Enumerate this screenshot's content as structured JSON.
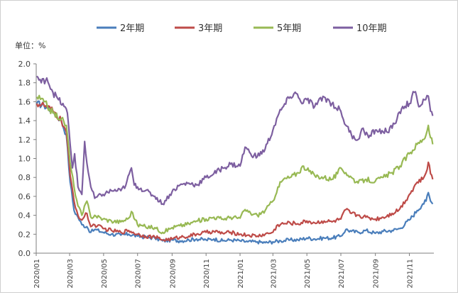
{
  "chart_data": {
    "type": "line",
    "title": "",
    "ylabel": "单位：%",
    "xlabel": "",
    "ylim": [
      0,
      2.0
    ],
    "yticks": [
      "0.0",
      "0.2",
      "0.4",
      "0.6",
      "0.8",
      "1.0",
      "1.2",
      "1.4",
      "1.6",
      "1.8",
      "2.0"
    ],
    "x_ticks": [
      "2020/01",
      "2020/03",
      "2020/05",
      "2020/07",
      "2020/09",
      "2020/11",
      "2021/01",
      "2021/03",
      "2021/05",
      "2021/07",
      "2021/09",
      "2021/11"
    ],
    "x_range": [
      "2020-01-01",
      "2021-12-15"
    ],
    "grid": false,
    "legend_position": "top",
    "series": [
      {
        "name": "2年期",
        "color": "#4a7ebb",
        "points": [
          [
            "2020-01-02",
            1.58
          ],
          [
            "2020-01-15",
            1.56
          ],
          [
            "2020-01-31",
            1.5
          ],
          [
            "2020-02-15",
            1.4
          ],
          [
            "2020-02-24",
            1.25
          ],
          [
            "2020-03-02",
            0.75
          ],
          [
            "2020-03-09",
            0.45
          ],
          [
            "2020-03-16",
            0.38
          ],
          [
            "2020-03-23",
            0.3
          ],
          [
            "2020-04-01",
            0.28
          ],
          [
            "2020-04-08",
            0.22
          ],
          [
            "2020-04-15",
            0.25
          ],
          [
            "2020-04-30",
            0.22
          ],
          [
            "2020-05-15",
            0.2
          ],
          [
            "2020-06-01",
            0.19
          ],
          [
            "2020-06-15",
            0.2
          ],
          [
            "2020-07-01",
            0.18
          ],
          [
            "2020-07-15",
            0.17
          ],
          [
            "2020-08-01",
            0.16
          ],
          [
            "2020-08-15",
            0.13
          ],
          [
            "2020-09-01",
            0.14
          ],
          [
            "2020-09-15",
            0.13
          ],
          [
            "2020-10-01",
            0.14
          ],
          [
            "2020-10-15",
            0.15
          ],
          [
            "2020-11-01",
            0.14
          ],
          [
            "2020-11-15",
            0.15
          ],
          [
            "2020-12-01",
            0.13
          ],
          [
            "2020-12-15",
            0.14
          ],
          [
            "2021-01-01",
            0.13
          ],
          [
            "2021-01-15",
            0.12
          ],
          [
            "2021-02-01",
            0.12
          ],
          [
            "2021-02-15",
            0.11
          ],
          [
            "2021-03-01",
            0.12
          ],
          [
            "2021-03-15",
            0.13
          ],
          [
            "2021-04-01",
            0.14
          ],
          [
            "2021-04-15",
            0.14
          ],
          [
            "2021-05-01",
            0.16
          ],
          [
            "2021-05-15",
            0.15
          ],
          [
            "2021-06-01",
            0.16
          ],
          [
            "2021-06-15",
            0.16
          ],
          [
            "2021-07-01",
            0.18
          ],
          [
            "2021-07-10",
            0.25
          ],
          [
            "2021-07-20",
            0.23
          ],
          [
            "2021-08-01",
            0.22
          ],
          [
            "2021-08-15",
            0.24
          ],
          [
            "2021-09-01",
            0.21
          ],
          [
            "2021-09-15",
            0.23
          ],
          [
            "2021-10-01",
            0.24
          ],
          [
            "2021-10-15",
            0.26
          ],
          [
            "2021-11-01",
            0.35
          ],
          [
            "2021-11-15",
            0.45
          ],
          [
            "2021-11-25",
            0.52
          ],
          [
            "2021-12-01",
            0.55
          ],
          [
            "2021-12-05",
            0.64
          ],
          [
            "2021-12-09",
            0.55
          ],
          [
            "2021-12-13",
            0.52
          ]
        ]
      },
      {
        "name": "3年期",
        "color": "#be4b48",
        "points": [
          [
            "2020-01-02",
            1.58
          ],
          [
            "2020-01-15",
            1.56
          ],
          [
            "2020-01-31",
            1.5
          ],
          [
            "2020-02-15",
            1.4
          ],
          [
            "2020-02-24",
            1.28
          ],
          [
            "2020-03-02",
            0.82
          ],
          [
            "2020-03-09",
            0.55
          ],
          [
            "2020-03-16",
            0.4
          ],
          [
            "2020-03-23",
            0.35
          ],
          [
            "2020-04-01",
            0.42
          ],
          [
            "2020-04-08",
            0.28
          ],
          [
            "2020-04-15",
            0.3
          ],
          [
            "2020-04-30",
            0.26
          ],
          [
            "2020-05-15",
            0.24
          ],
          [
            "2020-06-01",
            0.22
          ],
          [
            "2020-06-15",
            0.24
          ],
          [
            "2020-07-01",
            0.2
          ],
          [
            "2020-07-15",
            0.18
          ],
          [
            "2020-08-01",
            0.17
          ],
          [
            "2020-08-15",
            0.14
          ],
          [
            "2020-09-01",
            0.15
          ],
          [
            "2020-09-15",
            0.17
          ],
          [
            "2020-10-01",
            0.18
          ],
          [
            "2020-10-15",
            0.2
          ],
          [
            "2020-11-01",
            0.22
          ],
          [
            "2020-11-15",
            0.23
          ],
          [
            "2020-12-01",
            0.21
          ],
          [
            "2020-12-15",
            0.22
          ],
          [
            "2021-01-01",
            0.2
          ],
          [
            "2021-01-15",
            0.19
          ],
          [
            "2021-02-01",
            0.18
          ],
          [
            "2021-02-15",
            0.2
          ],
          [
            "2021-03-01",
            0.22
          ],
          [
            "2021-03-10",
            0.3
          ],
          [
            "2021-03-20",
            0.31
          ],
          [
            "2021-04-01",
            0.32
          ],
          [
            "2021-04-15",
            0.31
          ],
          [
            "2021-05-01",
            0.34
          ],
          [
            "2021-05-15",
            0.32
          ],
          [
            "2021-06-01",
            0.34
          ],
          [
            "2021-06-15",
            0.33
          ],
          [
            "2021-07-01",
            0.36
          ],
          [
            "2021-07-10",
            0.46
          ],
          [
            "2021-07-20",
            0.42
          ],
          [
            "2021-08-01",
            0.4
          ],
          [
            "2021-08-15",
            0.38
          ],
          [
            "2021-09-01",
            0.36
          ],
          [
            "2021-09-15",
            0.38
          ],
          [
            "2021-10-01",
            0.42
          ],
          [
            "2021-10-15",
            0.47
          ],
          [
            "2021-11-01",
            0.62
          ],
          [
            "2021-11-15",
            0.75
          ],
          [
            "2021-11-25",
            0.78
          ],
          [
            "2021-12-01",
            0.85
          ],
          [
            "2021-12-05",
            0.96
          ],
          [
            "2021-12-09",
            0.84
          ],
          [
            "2021-12-13",
            0.78
          ]
        ]
      },
      {
        "name": "5年期",
        "color": "#98b954",
        "points": [
          [
            "2020-01-02",
            1.65
          ],
          [
            "2020-01-15",
            1.6
          ],
          [
            "2020-01-31",
            1.48
          ],
          [
            "2020-02-15",
            1.42
          ],
          [
            "2020-02-24",
            1.35
          ],
          [
            "2020-03-02",
            0.95
          ],
          [
            "2020-03-09",
            0.7
          ],
          [
            "2020-03-16",
            0.5
          ],
          [
            "2020-03-23",
            0.4
          ],
          [
            "2020-04-01",
            0.55
          ],
          [
            "2020-04-08",
            0.38
          ],
          [
            "2020-04-15",
            0.4
          ],
          [
            "2020-04-30",
            0.36
          ],
          [
            "2020-05-15",
            0.34
          ],
          [
            "2020-06-01",
            0.33
          ],
          [
            "2020-06-15",
            0.37
          ],
          [
            "2020-06-20",
            0.44
          ],
          [
            "2020-07-01",
            0.3
          ],
          [
            "2020-07-15",
            0.28
          ],
          [
            "2020-08-01",
            0.27
          ],
          [
            "2020-08-15",
            0.22
          ],
          [
            "2020-09-01",
            0.27
          ],
          [
            "2020-09-15",
            0.29
          ],
          [
            "2020-10-01",
            0.31
          ],
          [
            "2020-10-15",
            0.34
          ],
          [
            "2020-11-01",
            0.36
          ],
          [
            "2020-11-15",
            0.38
          ],
          [
            "2020-12-01",
            0.36
          ],
          [
            "2020-12-15",
            0.38
          ],
          [
            "2021-01-01",
            0.37
          ],
          [
            "2021-01-10",
            0.46
          ],
          [
            "2021-01-20",
            0.42
          ],
          [
            "2021-02-01",
            0.4
          ],
          [
            "2021-02-15",
            0.45
          ],
          [
            "2021-03-01",
            0.55
          ],
          [
            "2021-03-10",
            0.7
          ],
          [
            "2021-03-20",
            0.78
          ],
          [
            "2021-04-01",
            0.8
          ],
          [
            "2021-04-15",
            0.85
          ],
          [
            "2021-04-25",
            0.92
          ],
          [
            "2021-05-01",
            0.88
          ],
          [
            "2021-05-15",
            0.82
          ],
          [
            "2021-06-01",
            0.8
          ],
          [
            "2021-06-15",
            0.78
          ],
          [
            "2021-06-25",
            0.84
          ],
          [
            "2021-07-01",
            0.9
          ],
          [
            "2021-07-10",
            0.85
          ],
          [
            "2021-07-20",
            0.8
          ],
          [
            "2021-08-01",
            0.74
          ],
          [
            "2021-08-15",
            0.78
          ],
          [
            "2021-09-01",
            0.76
          ],
          [
            "2021-09-15",
            0.8
          ],
          [
            "2021-10-01",
            0.85
          ],
          [
            "2021-10-15",
            0.92
          ],
          [
            "2021-11-01",
            1.05
          ],
          [
            "2021-11-15",
            1.15
          ],
          [
            "2021-11-25",
            1.2
          ],
          [
            "2021-12-01",
            1.25
          ],
          [
            "2021-12-05",
            1.35
          ],
          [
            "2021-12-09",
            1.22
          ],
          [
            "2021-12-13",
            1.15
          ]
        ]
      },
      {
        "name": "10年期",
        "color": "#7d5fa0",
        "points": [
          [
            "2020-01-02",
            1.87
          ],
          [
            "2020-01-10",
            1.8
          ],
          [
            "2020-01-20",
            1.85
          ],
          [
            "2020-01-31",
            1.7
          ],
          [
            "2020-02-10",
            1.62
          ],
          [
            "2020-02-20",
            1.55
          ],
          [
            "2020-02-26",
            1.48
          ],
          [
            "2020-03-02",
            1.15
          ],
          [
            "2020-03-06",
            0.9
          ],
          [
            "2020-03-10",
            1.05
          ],
          [
            "2020-03-16",
            0.7
          ],
          [
            "2020-03-23",
            0.62
          ],
          [
            "2020-03-28",
            1.18
          ],
          [
            "2020-04-01",
            0.95
          ],
          [
            "2020-04-08",
            0.7
          ],
          [
            "2020-04-15",
            0.58
          ],
          [
            "2020-04-30",
            0.62
          ],
          [
            "2020-05-15",
            0.66
          ],
          [
            "2020-06-01",
            0.66
          ],
          [
            "2020-06-10",
            0.72
          ],
          [
            "2020-06-20",
            0.9
          ],
          [
            "2020-06-25",
            0.72
          ],
          [
            "2020-07-01",
            0.7
          ],
          [
            "2020-07-15",
            0.66
          ],
          [
            "2020-08-01",
            0.6
          ],
          [
            "2020-08-15",
            0.52
          ],
          [
            "2020-09-01",
            0.65
          ],
          [
            "2020-09-15",
            0.72
          ],
          [
            "2020-10-01",
            0.74
          ],
          [
            "2020-10-15",
            0.72
          ],
          [
            "2020-11-01",
            0.8
          ],
          [
            "2020-11-15",
            0.84
          ],
          [
            "2020-12-01",
            0.9
          ],
          [
            "2020-12-15",
            0.94
          ],
          [
            "2021-01-01",
            0.92
          ],
          [
            "2021-01-10",
            1.12
          ],
          [
            "2021-01-20",
            1.05
          ],
          [
            "2021-02-01",
            1.02
          ],
          [
            "2021-02-15",
            1.1
          ],
          [
            "2021-03-01",
            1.3
          ],
          [
            "2021-03-10",
            1.45
          ],
          [
            "2021-03-20",
            1.55
          ],
          [
            "2021-04-01",
            1.65
          ],
          [
            "2021-04-10",
            1.7
          ],
          [
            "2021-04-20",
            1.6
          ],
          [
            "2021-05-01",
            1.62
          ],
          [
            "2021-05-15",
            1.55
          ],
          [
            "2021-06-01",
            1.65
          ],
          [
            "2021-06-15",
            1.58
          ],
          [
            "2021-07-01",
            1.5
          ],
          [
            "2021-07-10",
            1.35
          ],
          [
            "2021-07-20",
            1.25
          ],
          [
            "2021-08-01",
            1.2
          ],
          [
            "2021-08-10",
            1.32
          ],
          [
            "2021-08-20",
            1.22
          ],
          [
            "2021-09-01",
            1.3
          ],
          [
            "2021-09-15",
            1.28
          ],
          [
            "2021-10-01",
            1.32
          ],
          [
            "2021-10-10",
            1.42
          ],
          [
            "2021-10-20",
            1.55
          ],
          [
            "2021-11-01",
            1.58
          ],
          [
            "2021-11-10",
            1.7
          ],
          [
            "2021-11-20",
            1.55
          ],
          [
            "2021-11-28",
            1.62
          ],
          [
            "2021-12-05",
            1.66
          ],
          [
            "2021-12-09",
            1.5
          ],
          [
            "2021-12-13",
            1.45
          ]
        ]
      }
    ]
  }
}
